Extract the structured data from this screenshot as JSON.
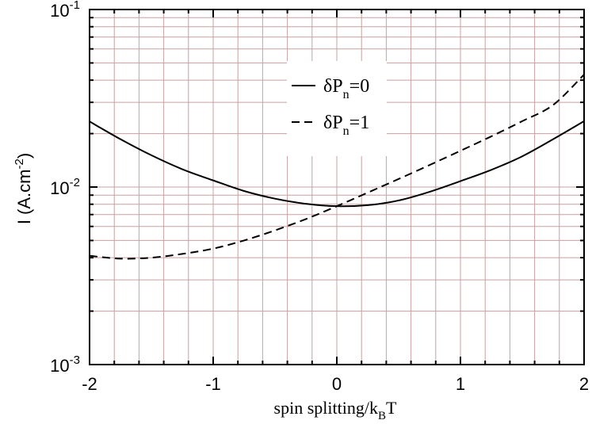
{
  "chart_data": {
    "type": "line",
    "title": "",
    "xlabel": {
      "main": "spin splitting/k",
      "sub": "B",
      "tail": "T"
    },
    "ylabel": {
      "main": "I (A.cm",
      "sup": "-2",
      "tail": ")"
    },
    "xlim": [
      -2,
      2
    ],
    "ylim": [
      0.001,
      0.1
    ],
    "yscale": "log",
    "grid": true,
    "grid_color": "#c8a0a0",
    "axis_color": "#000000",
    "x_ticks": [
      "-2",
      "-1",
      "0",
      "1",
      "2"
    ],
    "y_ticks": [
      {
        "base": "10",
        "exp": "-3"
      },
      {
        "base": "10",
        "exp": "-2"
      },
      {
        "base": "10",
        "exp": "-1"
      }
    ],
    "legend_position": "upper-center",
    "series": [
      {
        "name": {
          "pre": "δP",
          "sub": "n",
          "post": "=0"
        },
        "style": "solid",
        "x": [
          -2,
          -1.75,
          -1.5,
          -1.25,
          -1,
          -0.75,
          -0.5,
          -0.25,
          0,
          0.25,
          0.5,
          0.75,
          1,
          1.25,
          1.5,
          1.75,
          2
        ],
        "y": [
          0.0234,
          0.0186,
          0.0151,
          0.0126,
          0.0109,
          0.0095,
          0.0086,
          0.00805,
          0.0078,
          0.0079,
          0.0084,
          0.0094,
          0.0108,
          0.0125,
          0.0149,
          0.0186,
          0.0235
        ]
      },
      {
        "name": {
          "pre": "δP",
          "sub": "n",
          "post": "=1"
        },
        "style": "dashed",
        "x": [
          -2,
          -1.75,
          -1.5,
          -1.25,
          -1,
          -0.75,
          -0.5,
          -0.25,
          0,
          0.25,
          0.5,
          0.75,
          1,
          1.25,
          1.5,
          1.75,
          2
        ],
        "y": [
          0.0041,
          0.00395,
          0.004,
          0.0042,
          0.0045,
          0.005,
          0.0057,
          0.0066,
          0.0078,
          0.0093,
          0.0111,
          0.0133,
          0.016,
          0.0193,
          0.0235,
          0.029,
          0.043
        ]
      }
    ]
  }
}
